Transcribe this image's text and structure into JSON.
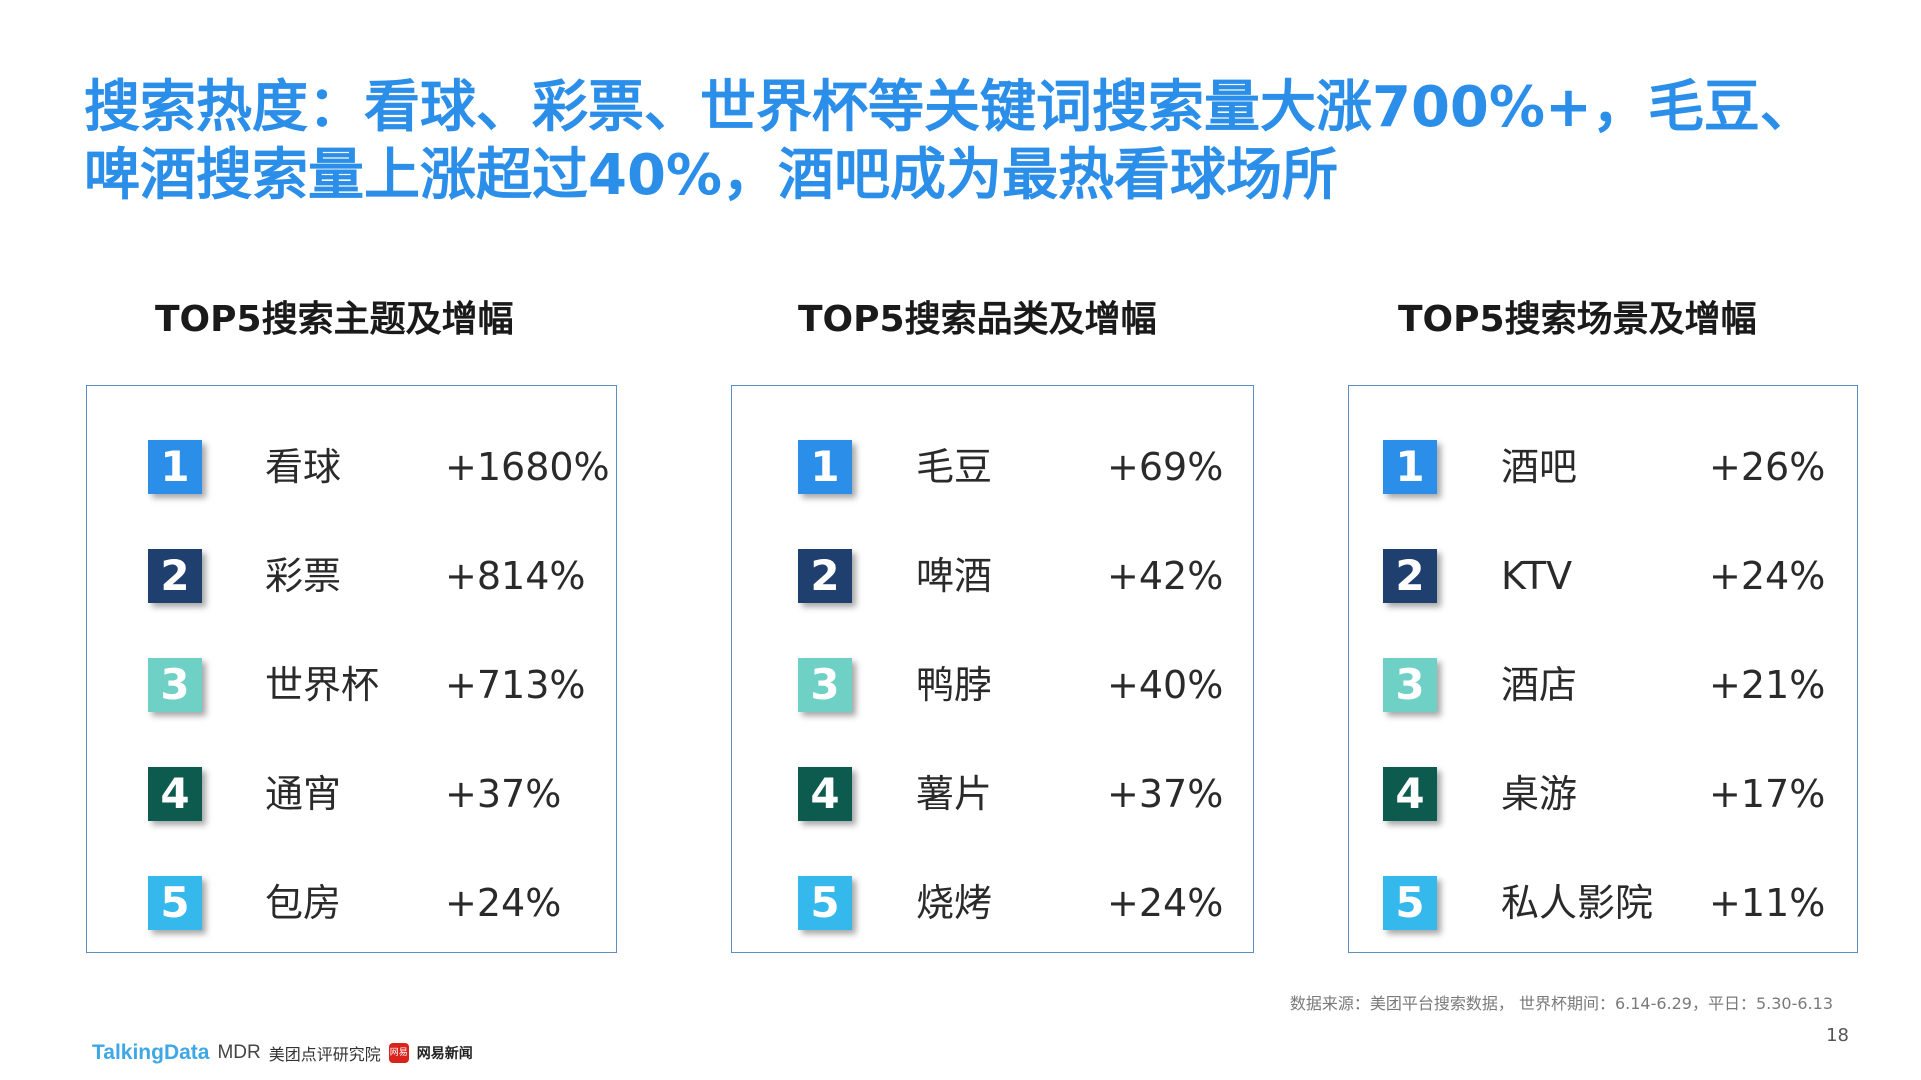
{
  "title": {
    "line1": "搜索热度：看球、彩票、世界杯等关键词搜索量大涨700%+，毛豆、",
    "line2": "啤酒搜索量上涨超过40%，酒吧成为最热看球场所"
  },
  "colors": {
    "title": "#2b8ee8",
    "rank1": "#2b8ee8",
    "rank2": "#1f3f6e",
    "rank3": "#6fd0c5",
    "rank4": "#0d5b4f",
    "rank5": "#35b8ec",
    "panel_border": "#5b8fc4"
  },
  "columns": [
    {
      "heading": "TOP5搜索主题及增幅",
      "items": [
        {
          "rank": "1",
          "name": "看球",
          "value": "+1680%"
        },
        {
          "rank": "2",
          "name": "彩票",
          "value": "+814%"
        },
        {
          "rank": "3",
          "name": "世界杯",
          "value": "+713%"
        },
        {
          "rank": "4",
          "name": "通宵",
          "value": "+37%"
        },
        {
          "rank": "5",
          "name": "包房",
          "value": "+24%"
        }
      ]
    },
    {
      "heading": "TOP5搜索品类及增幅",
      "items": [
        {
          "rank": "1",
          "name": "毛豆",
          "value": "+69%"
        },
        {
          "rank": "2",
          "name": "啤酒",
          "value": "+42%"
        },
        {
          "rank": "3",
          "name": "鸭脖",
          "value": "+40%"
        },
        {
          "rank": "4",
          "name": "薯片",
          "value": "+37%"
        },
        {
          "rank": "5",
          "name": "烧烤",
          "value": "+24%"
        }
      ]
    },
    {
      "heading": "TOP5搜索场景及增幅",
      "items": [
        {
          "rank": "1",
          "name": "酒吧",
          "value": "+26%"
        },
        {
          "rank": "2",
          "name": "KTV",
          "value": "+24%"
        },
        {
          "rank": "3",
          "name": "酒店",
          "value": "+21%"
        },
        {
          "rank": "4",
          "name": "桌游",
          "value": "+17%"
        },
        {
          "rank": "5",
          "name": "私人影院",
          "value": "+11%"
        }
      ]
    }
  ],
  "source": "数据来源：美团平台搜索数据， 世界杯期间：6.14-6.29，平日：5.30-6.13",
  "page_number": "18",
  "footer": {
    "talkingdata": "TalkingData",
    "mdr": "MDR",
    "mdr_text": "美团点评研究院",
    "netease_box": "网易",
    "netease_text": "网易新闻"
  }
}
